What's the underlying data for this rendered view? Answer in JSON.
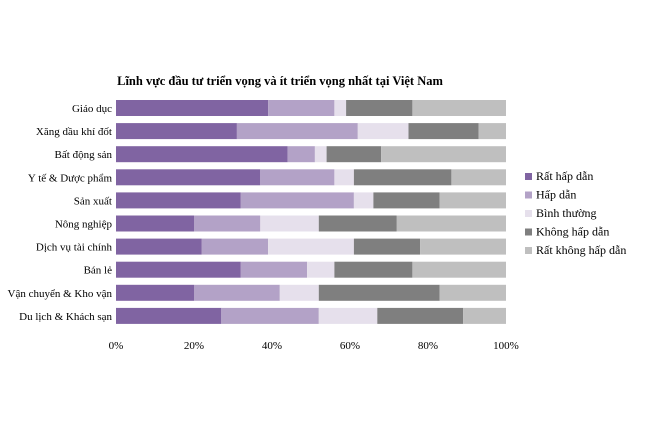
{
  "chart_data": {
    "type": "bar",
    "orientation": "horizontal",
    "stacked": "percent",
    "title": "Lĩnh vực đầu tư triển vọng và ít triển vọng nhất tại Việt Nam",
    "xlabel": "",
    "ylabel": "",
    "xlim": [
      0,
      100
    ],
    "grid": false,
    "legend_position": "right",
    "x_ticks": [
      "0%",
      "20%",
      "40%",
      "60%",
      "80%",
      "100%"
    ],
    "categories": [
      "Giáo dục",
      "Xăng dầu khí đốt",
      "Bất động sản",
      "Y tế & Dược phẩm",
      "Sản xuất",
      "Nông nghiệp",
      "Dịch vụ tài chính",
      "Bán lẻ",
      "Vận chuyển & Kho vận",
      "Du lịch & Khách sạn"
    ],
    "series": [
      {
        "name": "Rất hấp dẫn",
        "color": "#8064a2",
        "values": [
          39,
          31,
          44,
          37,
          32,
          20,
          22,
          32,
          20,
          27
        ]
      },
      {
        "name": "Hấp dẫn",
        "color": "#b3a2c7",
        "values": [
          17,
          31,
          7,
          19,
          29,
          17,
          17,
          17,
          22,
          25
        ]
      },
      {
        "name": "Bình thường",
        "color": "#e6e0ec",
        "values": [
          3,
          13,
          3,
          5,
          5,
          15,
          22,
          7,
          10,
          15
        ]
      },
      {
        "name": "Không hấp dẫn",
        "color": "#7f7f7f",
        "values": [
          17,
          18,
          14,
          25,
          17,
          20,
          17,
          20,
          31,
          22
        ]
      },
      {
        "name": "Rất không hấp dẫn",
        "color": "#bfbfbf",
        "values": [
          24,
          7,
          32,
          14,
          17,
          28,
          22,
          24,
          17,
          11
        ]
      }
    ]
  }
}
